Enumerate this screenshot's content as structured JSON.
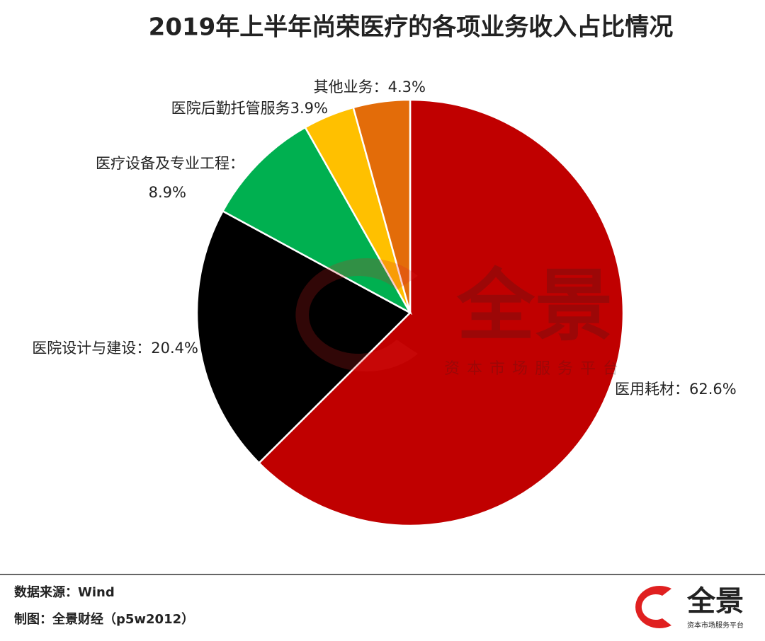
{
  "chart_data": {
    "type": "pie",
    "title": "2019年上半年尚荣医疗的各项业务收入占比情况",
    "categories": [
      "医用耗材：",
      "医院设计与建设：",
      "医疗设备及专业工程：",
      "医院后勤托管服务",
      "其他业务："
    ],
    "values": [
      62.6,
      20.4,
      8.9,
      3.9,
      4.3
    ],
    "value_labels": [
      "62.6%",
      "20.4%",
      "8.9%",
      "3.9%",
      "4.3%"
    ],
    "colors": [
      "#c00000",
      "#000000",
      "#00b050",
      "#ffc000",
      "#e36c09"
    ]
  },
  "footer": {
    "source": "数据来源：Wind",
    "credit": "制图：全景财经（p5w2012）"
  },
  "logo": {
    "name": "全景",
    "tagline": "资本市场服务平台"
  }
}
